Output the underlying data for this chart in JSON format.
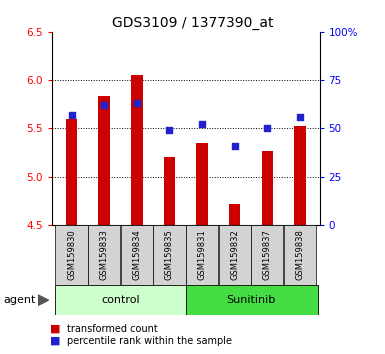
{
  "title": "GDS3109 / 1377390_at",
  "samples": [
    "GSM159830",
    "GSM159833",
    "GSM159834",
    "GSM159835",
    "GSM159831",
    "GSM159832",
    "GSM159837",
    "GSM159838"
  ],
  "transformed_count": [
    5.6,
    5.83,
    6.05,
    5.2,
    5.35,
    4.72,
    5.27,
    5.52
  ],
  "percentile_rank": [
    57,
    62,
    63,
    49,
    52,
    41,
    50,
    56
  ],
  "ymin": 4.5,
  "ymax": 6.5,
  "yticks_left": [
    4.5,
    5.0,
    5.5,
    6.0,
    6.5
  ],
  "yticks_right": [
    0,
    25,
    50,
    75,
    100
  ],
  "bar_color": "#cc0000",
  "dot_color": "#2222cc",
  "bar_bottom": 4.5,
  "control_color": "#ccffcc",
  "sunitinib_color": "#44dd44",
  "legend_items": [
    "transformed count",
    "percentile rank within the sample"
  ],
  "agent_label": "agent",
  "title_fontsize": 10,
  "tick_fontsize": 7.5,
  "label_fontsize": 8
}
